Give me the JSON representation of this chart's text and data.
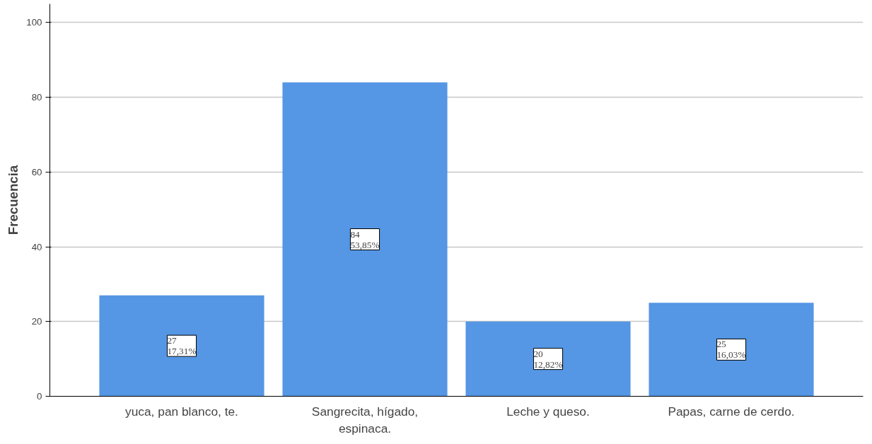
{
  "chart_data": {
    "type": "bar",
    "ylabel": "Frecuencia",
    "categories": [
      "yuca, pan blanco, te.",
      "Sangrecita, hígado, espinaca.",
      "Leche y queso.",
      "Papas, carne de cerdo."
    ],
    "values": [
      27,
      84,
      20,
      25
    ],
    "value_labels": [
      "27\n17,31%",
      "84\n53,85%",
      "20\n12,82%",
      "25\n16,03%"
    ],
    "color": "#5596e5",
    "ylim": [
      0,
      105
    ],
    "yticks": [
      0,
      20,
      40,
      60,
      80,
      100
    ],
    "grid": "y"
  }
}
